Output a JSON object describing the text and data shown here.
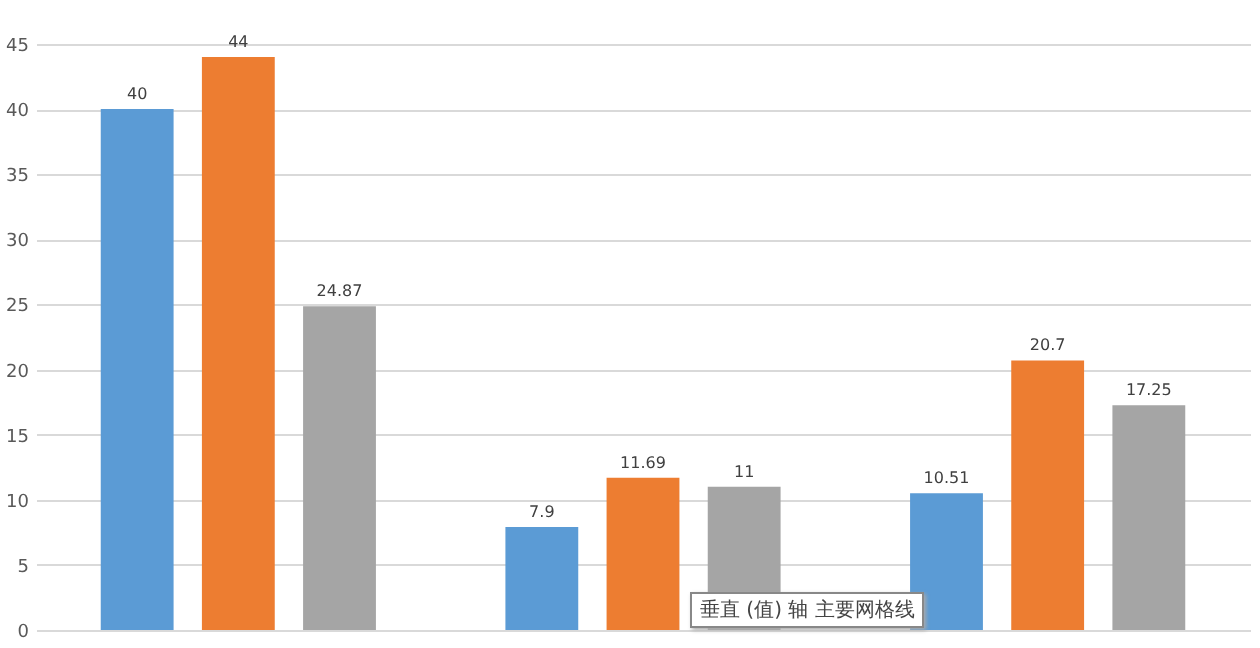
{
  "chart_data": {
    "type": "bar",
    "categories": [
      null,
      null,
      null
    ],
    "series": [
      {
        "color": "#5b9bd5",
        "values": [
          40,
          7.9,
          10.51
        ]
      },
      {
        "color": "#ed7d31",
        "values": [
          44,
          11.69,
          20.7
        ]
      },
      {
        "color": "#a5a5a5",
        "values": [
          24.87,
          11,
          17.25
        ]
      }
    ],
    "ylim": [
      0,
      45
    ],
    "yticks": [
      0,
      5,
      10,
      15,
      20,
      25,
      30,
      35,
      40,
      45
    ],
    "grid": "y",
    "data_labels": true,
    "annotations": [
      "垂直 (值) 轴 主要网格线"
    ]
  }
}
